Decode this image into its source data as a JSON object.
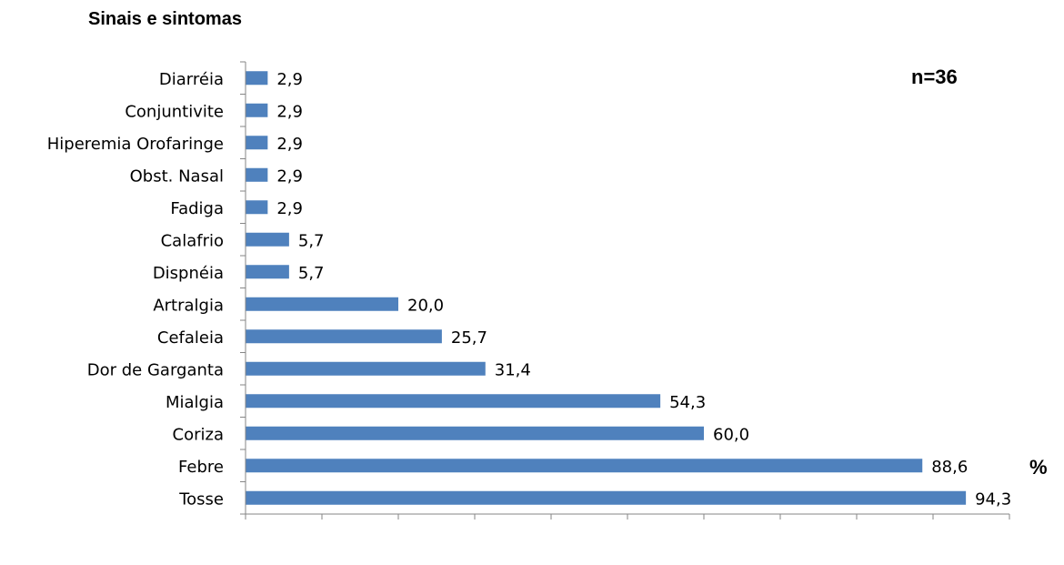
{
  "chart_data": {
    "type": "bar",
    "orientation": "horizontal",
    "title": "Sinais e sintomas",
    "annotations": [
      "n=36",
      "%"
    ],
    "categories": [
      "Tosse",
      "Febre",
      "Coriza",
      "Mialgia",
      "Dor de Garganta",
      "Cefaleia",
      "Artralgia",
      "Dispnéia",
      "Calafrio",
      "Fadiga",
      "Obst. Nasal",
      "Hiperemia Orofaringe",
      "Conjuntivite",
      "Diarréia"
    ],
    "values": [
      94.3,
      88.6,
      60.0,
      54.3,
      31.4,
      25.7,
      20.0,
      5.7,
      5.7,
      2.9,
      2.9,
      2.9,
      2.9,
      2.9
    ],
    "value_labels": [
      "94,3",
      "88,6",
      "60,0",
      "54,3",
      "31,4",
      "25,7",
      "20,0",
      "5,7",
      "5,7",
      "2,9",
      "2,9",
      "2,9",
      "2,9",
      "2,9"
    ],
    "xlim": [
      0,
      100
    ],
    "xticks": [
      0,
      10,
      20,
      30,
      40,
      50,
      60,
      70,
      80,
      90,
      100
    ],
    "xtick_labels": [
      "0,0",
      "10,0",
      "20,0",
      "30,0",
      "40,0",
      "50,0",
      "60,0",
      "70,0",
      "80,0",
      "90,0",
      "100,0"
    ],
    "bar_color": "#4f81bd",
    "axis_color": "#868686",
    "grid": false,
    "legend": "none"
  }
}
